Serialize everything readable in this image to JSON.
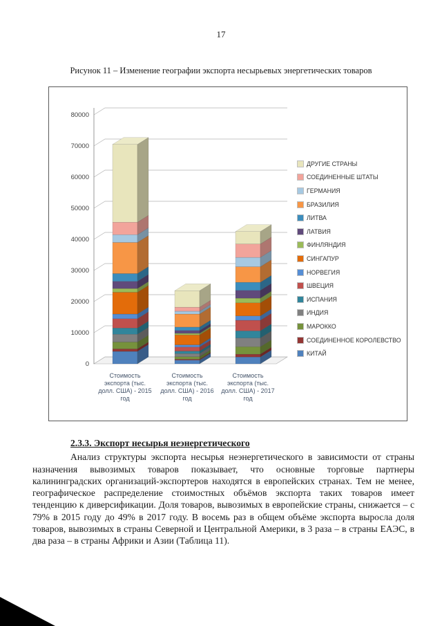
{
  "page": {
    "number": "17"
  },
  "figure": {
    "caption": "Рисунок 11 – Изменение географии экспорта несырьевых энергетических товаров"
  },
  "chart_data": {
    "type": "bar",
    "stacked": true,
    "effect": "3d",
    "legend_position": "right",
    "grid": true,
    "y_axis": {
      "min": 0,
      "max": 80000,
      "step": 10000,
      "ticks": [
        0,
        10000,
        20000,
        30000,
        40000,
        50000,
        60000,
        70000,
        80000
      ]
    },
    "categories": [
      {
        "label": "Стоимость экспорта (тыс. долл. США) - 2015 год",
        "lines": [
          "Стоимость",
          "экспорта (тыс.",
          "долл. США) - 2015",
          "год"
        ]
      },
      {
        "label": "Стоимость экспорта (тыс. долл. США) - 2016 год",
        "lines": [
          "Стоимость",
          "экспорта (тыс.",
          "долл. США) - 2016",
          "год"
        ]
      },
      {
        "label": "Стоимость экспорта (тыс. долл. США) - 2017 год",
        "lines": [
          "Стоимость",
          "экспорта (тыс.",
          "долл. США) - 2017",
          "год"
        ]
      }
    ],
    "stack_order_note": "series listed bottom-to-top; legend shows reverse order",
    "series": [
      {
        "name": "КИТАЙ",
        "color": "#4F81BD",
        "values": [
          4000,
          1200,
          2200
        ]
      },
      {
        "name": "СОЕДИНЕННОЕ КОРОЛЕВСТВО",
        "color": "#943634",
        "values": [
          800,
          300,
          900
        ]
      },
      {
        "name": "МАРОККО",
        "color": "#76923C",
        "values": [
          2200,
          800,
          2400
        ]
      },
      {
        "name": "ИНДИЯ",
        "color": "#808080",
        "values": [
          2500,
          1000,
          2800
        ]
      },
      {
        "name": "ИСПАНИЯ",
        "color": "#31859B",
        "values": [
          2000,
          800,
          2300
        ]
      },
      {
        "name": "ШВЕЦИЯ",
        "color": "#C0504D",
        "values": [
          3000,
          1300,
          3400
        ]
      },
      {
        "name": "НОРВЕГИЯ",
        "color": "#558ED5",
        "values": [
          1500,
          700,
          1400
        ]
      },
      {
        "name": "СИНГАПУР",
        "color": "#E36C0A",
        "values": [
          7000,
          3200,
          4200
        ]
      },
      {
        "name": "ФИНЛЯНДИЯ",
        "color": "#9BBB59",
        "values": [
          1200,
          500,
          1500
        ]
      },
      {
        "name": "ЛАТВИЯ",
        "color": "#604A7B",
        "values": [
          2300,
          900,
          2500
        ]
      },
      {
        "name": "ЛИТВА",
        "color": "#3C8DBC",
        "values": [
          2500,
          1100,
          2600
        ]
      },
      {
        "name": "БРАЗИЛИЯ",
        "color": "#F79646",
        "values": [
          10000,
          4200,
          5000
        ]
      },
      {
        "name": "ГЕРМАНИЯ",
        "color": "#A6C9E2",
        "values": [
          2500,
          900,
          3000
        ]
      },
      {
        "name": "СОЕДИНЕННЫЕ ШТАТЫ",
        "color": "#F2A49B",
        "values": [
          4000,
          1300,
          4300
        ]
      },
      {
        "name": "ДРУГИЕ СТРАНЫ",
        "color": "#E8E5BC",
        "values": [
          25000,
          5300,
          4000
        ]
      }
    ],
    "totals": [
      70500,
      23500,
      42500
    ],
    "title": "",
    "xlabel": "",
    "ylabel": ""
  },
  "section": {
    "heading": "2.3.3. Экспорт несырья неэнергетического",
    "paragraph": "Анализ структуры экспорта несырья неэнергетического в зависимости от страны назначения вывозимых товаров показывает, что основные торговые партнеры калининградских организаций-экспортеров находятся в европейских странах. Тем не менее, географическое распределение стоимостных объёмов экспорта таких товаров имеет тенденцию к диверсификации. Доля товаров, вывозимых в европейские страны, снижается – с 79% в 2015 году до 49% в 2017 году. В восемь раз в общем объёме экспорта выросла доля товаров, вывозимых в страны Северной и Центральной Америки, в 3 раза – в страны ЕАЭС, в два раза – в страны Африки и Азии (Таблица 11)."
  }
}
